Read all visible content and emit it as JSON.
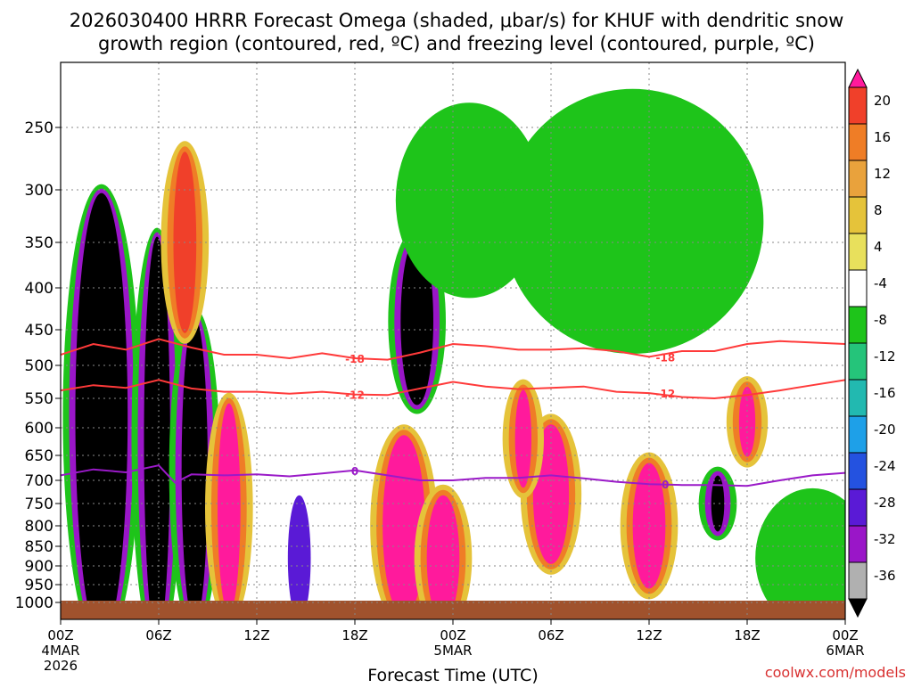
{
  "title": {
    "line1": "2026030400 HRRR Forecast Omega (shaded, μbar/s) for KHUF with dendritic snow",
    "line2": "growth region (contoured, red, ºC) and freezing level (contoured, purple, ºC)"
  },
  "watermark": "coolwx.com/models",
  "chart_data": {
    "type": "heatmap",
    "title": "2026030400 HRRR Forecast Omega (shaded, μbar/s) for KHUF with dendritic snow growth region (contoured, red, ºC) and freezing level (contoured, purple, ºC)",
    "xlabel": "Forecast Time (UTC)",
    "ylabel": "",
    "x_ticks": [
      {
        "label": "00Z",
        "sub": "4MAR",
        "sub2": "2026",
        "hour": 0
      },
      {
        "label": "06Z",
        "sub": "",
        "sub2": "",
        "hour": 6
      },
      {
        "label": "12Z",
        "sub": "",
        "sub2": "",
        "hour": 12
      },
      {
        "label": "18Z",
        "sub": "",
        "sub2": "",
        "hour": 18
      },
      {
        "label": "00Z",
        "sub": "5MAR",
        "sub2": "",
        "hour": 24
      },
      {
        "label": "06Z",
        "sub": "",
        "sub2": "",
        "hour": 30
      },
      {
        "label": "12Z",
        "sub": "",
        "sub2": "",
        "hour": 36
      },
      {
        "label": "18Z",
        "sub": "",
        "sub2": "",
        "hour": 42
      },
      {
        "label": "00Z",
        "sub": "6MAR",
        "sub2": "",
        "hour": 48
      }
    ],
    "y_ticks": [
      250,
      300,
      350,
      400,
      450,
      500,
      550,
      600,
      650,
      700,
      750,
      800,
      850,
      900,
      950,
      1000
    ],
    "ylim": [
      1000,
      200
    ],
    "xlim": [
      0,
      48
    ],
    "grid": true,
    "colorbar": {
      "labels": [
        "20",
        "16",
        "12",
        "8",
        "4",
        "-4",
        "-8",
        "-12",
        "-16",
        "-20",
        "-24",
        "-28",
        "-32",
        "-36"
      ],
      "colors": [
        "#ff1a9c",
        "#f0402a",
        "#ef7d26",
        "#e9a23c",
        "#e5c33a",
        "#e8e05c",
        "#ffffff",
        "#1ec41a",
        "#25c47a",
        "#22b9b0",
        "#1ea0e8",
        "#2452e0",
        "#5a1ad6",
        "#9a16c8",
        "#b0b0b0",
        "#000000"
      ]
    },
    "contours": [
      {
        "label": "-18",
        "color": "#ff3a3a",
        "points": [
          [
            0,
            485
          ],
          [
            2,
            470
          ],
          [
            4,
            478
          ],
          [
            6,
            463
          ],
          [
            8,
            475
          ],
          [
            10,
            485
          ],
          [
            12,
            485
          ],
          [
            14,
            490
          ],
          [
            16,
            483
          ],
          [
            18,
            490
          ],
          [
            20,
            492
          ],
          [
            22,
            482
          ],
          [
            24,
            470
          ],
          [
            26,
            473
          ],
          [
            28,
            478
          ],
          [
            30,
            478
          ],
          [
            32,
            476
          ],
          [
            34,
            480
          ],
          [
            36,
            488
          ],
          [
            38,
            480
          ],
          [
            40,
            480
          ],
          [
            42,
            470
          ],
          [
            44,
            466
          ],
          [
            46,
            468
          ],
          [
            48,
            470
          ]
        ]
      },
      {
        "label": "-12",
        "color": "#ff3a3a",
        "points": [
          [
            0,
            538
          ],
          [
            2,
            530
          ],
          [
            4,
            534
          ],
          [
            6,
            522
          ],
          [
            8,
            535
          ],
          [
            10,
            540
          ],
          [
            12,
            540
          ],
          [
            14,
            543
          ],
          [
            16,
            540
          ],
          [
            18,
            544
          ],
          [
            20,
            545
          ],
          [
            22,
            535
          ],
          [
            24,
            525
          ],
          [
            26,
            532
          ],
          [
            28,
            536
          ],
          [
            30,
            534
          ],
          [
            32,
            532
          ],
          [
            34,
            540
          ],
          [
            36,
            542
          ],
          [
            38,
            548
          ],
          [
            40,
            550
          ],
          [
            42,
            545
          ],
          [
            44,
            538
          ],
          [
            46,
            530
          ],
          [
            48,
            522
          ]
        ]
      },
      {
        "label": "0",
        "color": "#9a1ac8",
        "points": [
          [
            0,
            690
          ],
          [
            2,
            678
          ],
          [
            4,
            684
          ],
          [
            6,
            670
          ],
          [
            7,
            705
          ],
          [
            8,
            688
          ],
          [
            10,
            690
          ],
          [
            12,
            688
          ],
          [
            14,
            692
          ],
          [
            16,
            686
          ],
          [
            18,
            680
          ],
          [
            20,
            690
          ],
          [
            22,
            700
          ],
          [
            24,
            700
          ],
          [
            26,
            695
          ],
          [
            28,
            695
          ],
          [
            30,
            690
          ],
          [
            32,
            696
          ],
          [
            34,
            703
          ],
          [
            36,
            708
          ],
          [
            38,
            710
          ],
          [
            40,
            710
          ],
          [
            42,
            712
          ],
          [
            44,
            700
          ],
          [
            46,
            690
          ],
          [
            48,
            685
          ]
        ]
      }
    ],
    "omega_cells": [
      {
        "x": 2.5,
        "p": 580,
        "w": 1.6,
        "h": 620,
        "value": -36
      },
      {
        "x": 5.9,
        "p": 620,
        "w": 0.8,
        "h": 560,
        "value": -36
      },
      {
        "x": 8.2,
        "p": 680,
        "w": 0.8,
        "h": 420,
        "value": -36
      },
      {
        "x": 21.8,
        "p": 440,
        "w": 1.0,
        "h": 220,
        "value": -36
      },
      {
        "x": 40.2,
        "p": 750,
        "w": 0.4,
        "h": 60,
        "value": -36
      },
      {
        "x": 7.6,
        "p": 350,
        "w": 0.7,
        "h": 240,
        "value": 16
      },
      {
        "x": 10.3,
        "p": 760,
        "w": 0.7,
        "h": 280,
        "value": 20
      },
      {
        "x": 21.0,
        "p": 800,
        "w": 1.3,
        "h": 240,
        "value": 20
      },
      {
        "x": 23.4,
        "p": 880,
        "w": 1.0,
        "h": 160,
        "value": 20
      },
      {
        "x": 30.0,
        "p": 730,
        "w": 1.1,
        "h": 180,
        "value": 20
      },
      {
        "x": 36.0,
        "p": 800,
        "w": 1.0,
        "h": 160,
        "value": 20
      },
      {
        "x": 42.0,
        "p": 590,
        "w": 0.5,
        "h": 80,
        "value": 20
      },
      {
        "x": 28.3,
        "p": 620,
        "w": 0.5,
        "h": 120,
        "value": 20
      },
      {
        "x": 14.6,
        "p": 880,
        "w": 0.7,
        "h": 160,
        "value": -28
      },
      {
        "x": 25.0,
        "p": 310,
        "w": 4.5,
        "h": 260,
        "value": -8
      },
      {
        "x": 35.0,
        "p": 330,
        "w": 8.0,
        "h": 360,
        "value": -8
      },
      {
        "x": 46.0,
        "p": 880,
        "w": 3.5,
        "h": 180,
        "value": -8
      }
    ]
  }
}
